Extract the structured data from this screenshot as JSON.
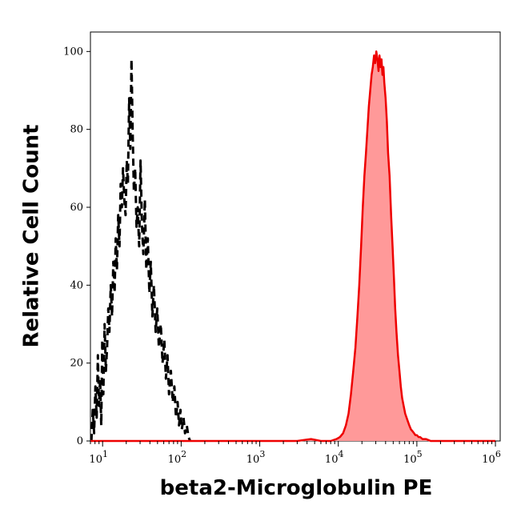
{
  "chart_data": {
    "type": "area",
    "title": "",
    "xlabel": "beta2-Microglobulin PE",
    "ylabel": "Relative Cell Count",
    "x_scale": "log",
    "xlim": [
      7,
      1150000
    ],
    "ylim": [
      0,
      105
    ],
    "y_ticks": [
      0,
      20,
      40,
      60,
      80,
      100
    ],
    "y_tick_labels": [
      "0",
      "20",
      "40",
      "60",
      "80",
      "100"
    ],
    "x_ticks": [
      10,
      100,
      1000,
      10000,
      100000,
      1000000
    ],
    "x_tick_labels": [
      {
        "base": "10",
        "exp": "1"
      },
      {
        "base": "10",
        "exp": "2"
      },
      {
        "base": "10",
        "exp": "3"
      },
      {
        "base": "10",
        "exp": "4"
      },
      {
        "base": "10",
        "exp": "5"
      },
      {
        "base": "10",
        "exp": "6"
      }
    ],
    "grid": false,
    "legend": "none",
    "series": [
      {
        "style": "dashed",
        "color": "#000000",
        "fill": "none",
        "points": [
          [
            7.2,
            0
          ],
          [
            7.5,
            8
          ],
          [
            7.8,
            2
          ],
          [
            8.1,
            14
          ],
          [
            8.4,
            6
          ],
          [
            8.7,
            22
          ],
          [
            9.0,
            9
          ],
          [
            9.3,
            16
          ],
          [
            9.6,
            4
          ],
          [
            9.9,
            26
          ],
          [
            10.2,
            12
          ],
          [
            10.6,
            30
          ],
          [
            11.0,
            18
          ],
          [
            11.4,
            24
          ],
          [
            11.8,
            34
          ],
          [
            12.2,
            28
          ],
          [
            12.7,
            40
          ],
          [
            13.2,
            32
          ],
          [
            13.7,
            46
          ],
          [
            14.2,
            38
          ],
          [
            14.7,
            52
          ],
          [
            15.2,
            44
          ],
          [
            15.8,
            58
          ],
          [
            16.4,
            50
          ],
          [
            17.0,
            66
          ],
          [
            17.6,
            60
          ],
          [
            18.2,
            70
          ],
          [
            18.9,
            62
          ],
          [
            19.6,
            58
          ],
          [
            20.3,
            72
          ],
          [
            21.0,
            66
          ],
          [
            21.8,
            88
          ],
          [
            22.5,
            75
          ],
          [
            23.3,
            98
          ],
          [
            24.1,
            80
          ],
          [
            25.0,
            64
          ],
          [
            26.0,
            70
          ],
          [
            27.0,
            55
          ],
          [
            28.0,
            60
          ],
          [
            29.2,
            50
          ],
          [
            30.4,
            72
          ],
          [
            31.6,
            56
          ],
          [
            33.0,
            48
          ],
          [
            34.5,
            62
          ],
          [
            36.0,
            44
          ],
          [
            37.6,
            52
          ],
          [
            39.3,
            38
          ],
          [
            41.0,
            46
          ],
          [
            43.0,
            32
          ],
          [
            45.0,
            40
          ],
          [
            47.3,
            28
          ],
          [
            49.6,
            34
          ],
          [
            52.0,
            24
          ],
          [
            55.0,
            30
          ],
          [
            58.0,
            20
          ],
          [
            61.0,
            26
          ],
          [
            64.0,
            16
          ],
          [
            67.0,
            22
          ],
          [
            70.0,
            12
          ],
          [
            74.0,
            18
          ],
          [
            78.0,
            10
          ],
          [
            82.0,
            14
          ],
          [
            86.0,
            6
          ],
          [
            90.0,
            10
          ],
          [
            94.0,
            4
          ],
          [
            98.0,
            8
          ],
          [
            102.0,
            3
          ],
          [
            107.0,
            6
          ],
          [
            112.0,
            2
          ],
          [
            118.0,
            4
          ],
          [
            124.0,
            1
          ],
          [
            130.0,
            0
          ]
        ]
      },
      {
        "style": "solid",
        "color": "#ee0000",
        "fill": "#ff9999",
        "points": [
          [
            7,
            0
          ],
          [
            100,
            0
          ],
          [
            1000,
            0
          ],
          [
            3000,
            0
          ],
          [
            4500,
            0.5
          ],
          [
            6000,
            0
          ],
          [
            8000,
            0
          ],
          [
            9500,
            0.5
          ],
          [
            10500,
            1
          ],
          [
            11500,
            2
          ],
          [
            12500,
            4
          ],
          [
            13500,
            7
          ],
          [
            14500,
            12
          ],
          [
            15500,
            18
          ],
          [
            16500,
            24
          ],
          [
            17500,
            32
          ],
          [
            18500,
            40
          ],
          [
            19500,
            50
          ],
          [
            20500,
            60
          ],
          [
            21500,
            68
          ],
          [
            22500,
            74
          ],
          [
            23500,
            80
          ],
          [
            24500,
            86
          ],
          [
            25500,
            90
          ],
          [
            26500,
            94
          ],
          [
            27500,
            96
          ],
          [
            28500,
            99
          ],
          [
            29500,
            97
          ],
          [
            30500,
            100
          ],
          [
            31500,
            98
          ],
          [
            32500,
            95
          ],
          [
            33500,
            99
          ],
          [
            34500,
            96
          ],
          [
            35500,
            98
          ],
          [
            36500,
            94
          ],
          [
            37500,
            96
          ],
          [
            38500,
            92
          ],
          [
            40000,
            88
          ],
          [
            41500,
            82
          ],
          [
            43000,
            74
          ],
          [
            45000,
            68
          ],
          [
            47000,
            58
          ],
          [
            49000,
            50
          ],
          [
            51000,
            42
          ],
          [
            53000,
            34
          ],
          [
            55000,
            28
          ],
          [
            57500,
            22
          ],
          [
            60000,
            18
          ],
          [
            62500,
            14
          ],
          [
            65000,
            11
          ],
          [
            68000,
            9
          ],
          [
            71000,
            7
          ],
          [
            74000,
            6
          ],
          [
            77000,
            5
          ],
          [
            80000,
            4
          ],
          [
            84000,
            3
          ],
          [
            88000,
            2.5
          ],
          [
            92000,
            2
          ],
          [
            96000,
            1.5
          ],
          [
            100000,
            1.5
          ],
          [
            105000,
            1
          ],
          [
            110000,
            1
          ],
          [
            118000,
            0.5
          ],
          [
            130000,
            0.5
          ],
          [
            150000,
            0
          ],
          [
            300000,
            0
          ],
          [
            1000000,
            0
          ]
        ]
      }
    ]
  }
}
